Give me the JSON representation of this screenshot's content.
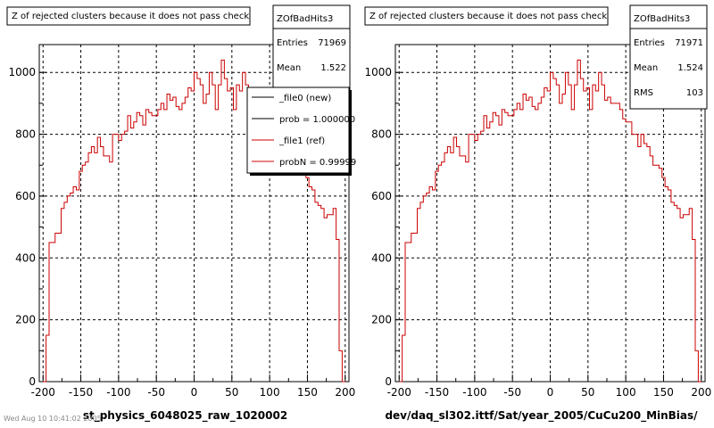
{
  "chart_data": [
    {
      "type": "histogram",
      "title": "Z of rejected clusters  because it does not pass check",
      "xlabel": "st_physics_6048025_raw_1020002",
      "ylabel": "",
      "xlim": [
        -205,
        205
      ],
      "ylim": [
        0,
        1090
      ],
      "x_ticks": [
        -200,
        -150,
        -100,
        -50,
        0,
        50,
        100,
        150,
        200
      ],
      "y_ticks": [
        0,
        200,
        400,
        600,
        800,
        1000
      ],
      "grid": true,
      "series_color": "#cc0000",
      "bin_edges_start": -200,
      "bin_width": 4,
      "values": [
        0,
        150,
        450,
        450,
        480,
        480,
        560,
        580,
        600,
        610,
        630,
        620,
        680,
        700,
        710,
        740,
        760,
        740,
        790,
        760,
        730,
        730,
        710,
        800,
        800,
        780,
        800,
        810,
        860,
        820,
        840,
        870,
        860,
        830,
        880,
        870,
        860,
        860,
        880,
        900,
        880,
        930,
        910,
        920,
        890,
        880,
        900,
        920,
        950,
        940,
        1000,
        980,
        960,
        900,
        930,
        1000,
        960,
        880,
        960,
        1040,
        980,
        940,
        950,
        880,
        960,
        940,
        1000,
        960,
        910,
        920,
        900,
        900,
        900,
        880,
        850,
        840,
        840,
        800,
        800,
        760,
        800,
        770,
        760,
        730,
        700,
        700,
        690,
        660,
        630,
        620,
        580,
        570,
        560,
        530,
        540,
        540,
        560,
        460,
        100,
        0
      ],
      "stats": {
        "name": "ZOfBadHits3",
        "rows": [
          {
            "label": "Entries",
            "value": "71969"
          },
          {
            "label": "Mean",
            "value": "1.522"
          }
        ]
      },
      "legend": {
        "entries": [
          {
            "label": "_file0 (new)",
            "color": "#000000"
          },
          {
            "label": "prob = 1.000000",
            "color": "#000000"
          },
          {
            "label": "_file1 (ref)",
            "color": "#cc0000"
          },
          {
            "label": "probN = 0.99999",
            "color": "#cc0000"
          }
        ]
      },
      "footer_note": "Wed Aug 10 10:41:02 2005"
    },
    {
      "type": "histogram",
      "title": "Z of rejected clusters  because it does not pass check",
      "xlabel": "dev/daq_sl302.ittf/Sat/year_2005/CuCu200_MinBias/",
      "ylabel": "",
      "xlim": [
        -205,
        205
      ],
      "ylim": [
        0,
        1090
      ],
      "x_ticks": [
        -200,
        -150,
        -100,
        -50,
        0,
        50,
        100,
        150,
        200
      ],
      "y_ticks": [
        0,
        200,
        400,
        600,
        800,
        1000
      ],
      "grid": true,
      "series_color": "#cc0000",
      "bin_edges_start": -200,
      "bin_width": 4,
      "values": [
        0,
        150,
        450,
        450,
        480,
        480,
        560,
        580,
        600,
        610,
        630,
        620,
        680,
        700,
        710,
        740,
        760,
        740,
        790,
        760,
        730,
        730,
        710,
        800,
        800,
        780,
        800,
        810,
        860,
        820,
        840,
        870,
        860,
        830,
        880,
        870,
        860,
        860,
        880,
        900,
        880,
        930,
        910,
        920,
        890,
        880,
        900,
        920,
        950,
        940,
        1000,
        980,
        960,
        900,
        930,
        1000,
        960,
        880,
        960,
        1040,
        980,
        940,
        950,
        880,
        960,
        940,
        1000,
        960,
        910,
        920,
        900,
        900,
        900,
        880,
        850,
        840,
        840,
        800,
        800,
        760,
        800,
        770,
        760,
        730,
        700,
        700,
        690,
        660,
        630,
        620,
        580,
        570,
        560,
        530,
        540,
        540,
        560,
        460,
        100,
        0
      ],
      "stats": {
        "name": "ZOfBadHits3",
        "rows": [
          {
            "label": "Entries",
            "value": "71971"
          },
          {
            "label": "Mean",
            "value": "1.524"
          },
          {
            "label": "RMS",
            "value": "103"
          }
        ]
      }
    }
  ]
}
